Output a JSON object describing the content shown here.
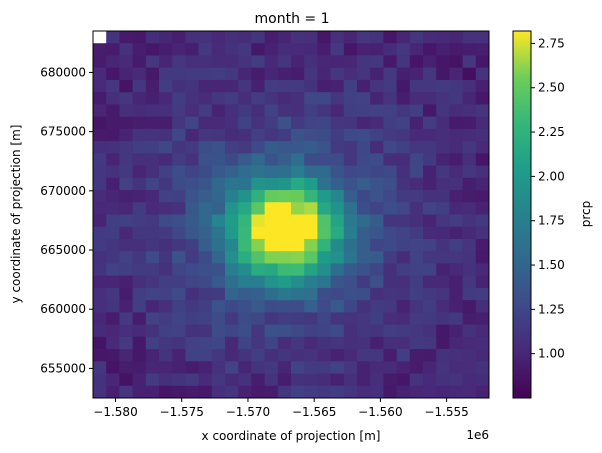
{
  "chart_data": {
    "type": "heatmap",
    "title": "month = 1",
    "xlabel": "x coordinate of projection [m]",
    "ylabel": "y coordinate of projection [m]",
    "x_offset_label": "1e6",
    "x_ticks": [
      "−1.580",
      "−1.575",
      "−1.570",
      "−1.565",
      "−1.560",
      "−1.555"
    ],
    "x_tick_values": [
      -1.58,
      -1.575,
      -1.57,
      -1.565,
      -1.56,
      -1.555
    ],
    "xlim": [
      -1.5817,
      -1.5518
    ],
    "y_ticks": [
      "655000",
      "660000",
      "665000",
      "670000",
      "675000",
      "680000"
    ],
    "y_tick_values": [
      655000,
      660000,
      665000,
      670000,
      675000,
      680000
    ],
    "ylim": [
      652500,
      683500
    ],
    "grid_size": 30,
    "colorbar": {
      "label": "prcp",
      "ticks": [
        "1.00",
        "1.25",
        "1.50",
        "1.75",
        "2.00",
        "2.25",
        "2.50",
        "2.75"
      ],
      "tick_values": [
        1.0,
        1.25,
        1.5,
        1.75,
        2.0,
        2.25,
        2.5,
        2.75
      ],
      "range": [
        0.75,
        2.82
      ],
      "colormap": "viridis"
    },
    "peak": {
      "x": -1.5672,
      "y": 666700,
      "value": 2.82
    },
    "missing_cell": {
      "x": -1.5812,
      "y": 683000
    }
  }
}
